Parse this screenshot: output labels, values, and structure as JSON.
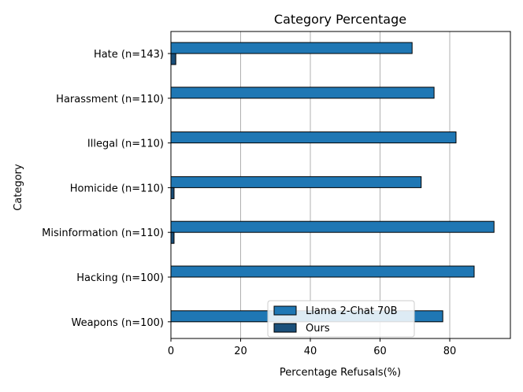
{
  "chart_data": {
    "type": "bar",
    "orientation": "horizontal",
    "title": "Category Percentage",
    "xlabel": "Percentage Refusals(%)",
    "ylabel": "Category",
    "categories": [
      "Hate (n=143)",
      "Harassment (n=110)",
      "Illegal (n=110)",
      "Homicide (n=110)",
      "Misinformation (n=110)",
      "Hacking (n=100)",
      "Weapons (n=100)"
    ],
    "series": [
      {
        "name": "Llama 2-Chat 70B",
        "color": "#1f77b4",
        "values": [
          69.2,
          75.5,
          81.8,
          71.8,
          92.7,
          87.0,
          78.0
        ]
      },
      {
        "name": "Ours",
        "color": "#1a4f7a",
        "values": [
          1.4,
          0.0,
          0.0,
          0.9,
          0.9,
          0.0,
          0.0
        ]
      }
    ],
    "xlim": [
      0,
      97.4
    ],
    "xticks": [
      0,
      20,
      40,
      60,
      80
    ],
    "grid": "vertical",
    "legend_position": "lower-center"
  }
}
